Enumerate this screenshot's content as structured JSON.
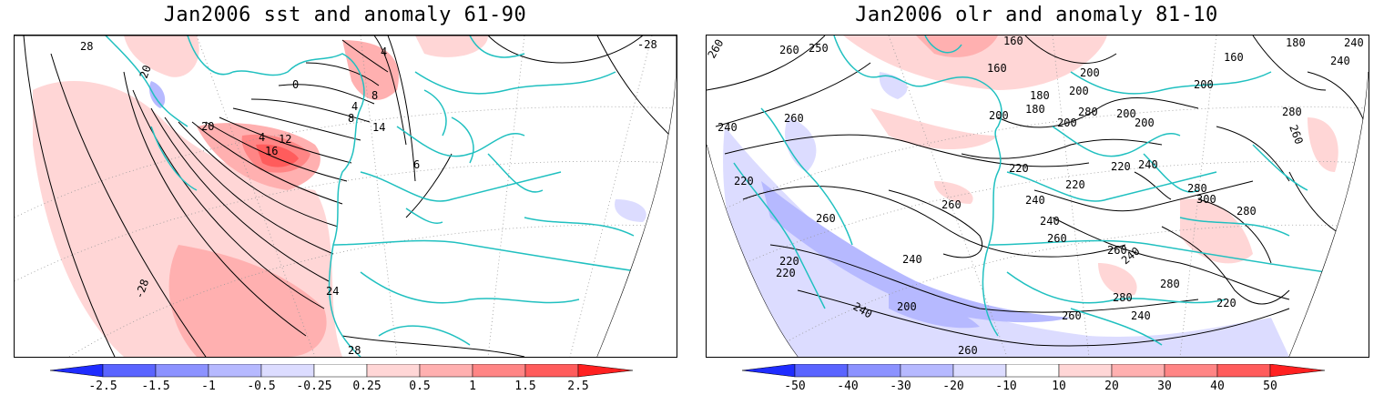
{
  "left_panel": {
    "title": "Jan2006 sst and anomaly 61-90",
    "contour_labels": [
      "28",
      "20",
      "0",
      "4",
      "8",
      "4",
      "12",
      "16",
      "20",
      "6",
      "4",
      "8",
      "14",
      "-28",
      "24",
      "28",
      "-28"
    ],
    "colorbar": {
      "ticks": [
        "-2.5",
        "-1.5",
        "-1",
        "-0.5",
        "-0.25",
        "0.25",
        "0.5",
        "1",
        "1.5",
        "2.5"
      ],
      "colors": [
        "#1f2cff",
        "#5a64ff",
        "#8c92ff",
        "#b6b9ff",
        "#dcdcff",
        "#ffffff",
        "#ffd6d6",
        "#ffb0b0",
        "#ff8585",
        "#ff5c5c",
        "#ff2020"
      ]
    }
  },
  "right_panel": {
    "title": "Jan2006 olr and anomaly 81-10",
    "contour_labels": [
      "260",
      "160",
      "180",
      "240",
      "260",
      "250",
      "160",
      "180",
      "200",
      "160",
      "240",
      "240",
      "180",
      "200",
      "200",
      "280",
      "260",
      "260",
      "200",
      "200",
      "220",
      "240",
      "200",
      "280",
      "200",
      "220",
      "240",
      "220",
      "220",
      "260",
      "240",
      "260",
      "280",
      "300",
      "260",
      "280",
      "220",
      "260",
      "240",
      "280",
      "240",
      "220",
      "280",
      "200",
      "260",
      "240",
      "220",
      "240",
      "260"
    ],
    "colorbar": {
      "ticks": [
        "-50",
        "-40",
        "-30",
        "-20",
        "-10",
        "10",
        "20",
        "30",
        "40",
        "50"
      ],
      "colors": [
        "#1f2cff",
        "#5a64ff",
        "#8c92ff",
        "#b6b9ff",
        "#dcdcff",
        "#ffffff",
        "#ffd6d6",
        "#ffb0b0",
        "#ff8585",
        "#ff5c5c",
        "#ff2020"
      ]
    }
  },
  "colors": {
    "coast": "#20c0c0",
    "contour": "#000000",
    "frame": "#000000"
  }
}
